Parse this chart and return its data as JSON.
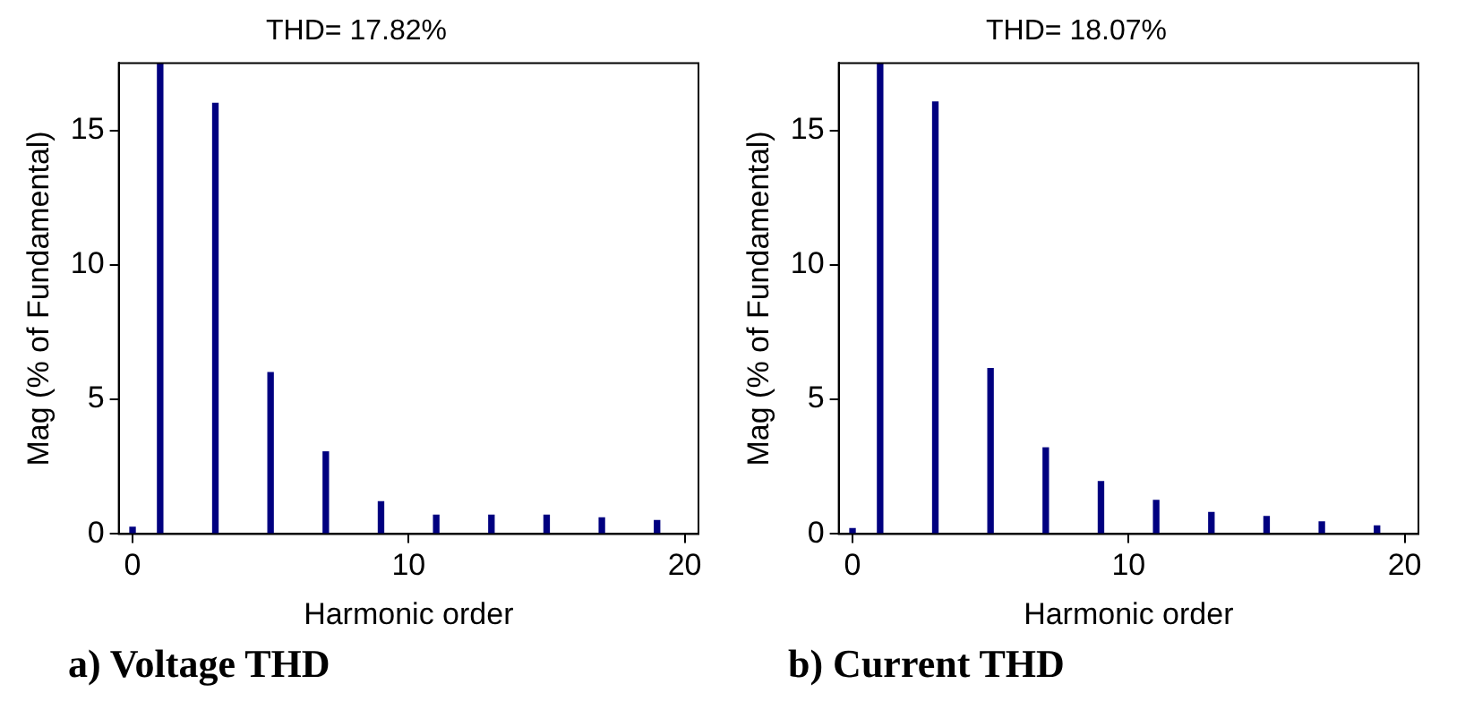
{
  "chart_data": [
    {
      "type": "bar",
      "title": "THD= 17.82%",
      "xlabel": "Harmonic order",
      "ylabel": "Mag (% of Fundamental)",
      "annotations": [
        "a) Voltage THD"
      ],
      "categories": [
        "0",
        null,
        null,
        null,
        null,
        null,
        null,
        null,
        null,
        null,
        "10",
        null,
        null,
        null,
        null,
        null,
        null,
        null,
        null,
        null,
        "20"
      ],
      "series": [
        {
          "color": "#000080",
          "values": [
            0.25,
            17.5,
            null,
            16.0,
            null,
            6.0,
            null,
            3.05,
            null,
            1.2,
            null,
            0.7,
            null,
            0.7,
            null,
            0.7,
            null,
            0.6,
            null,
            0.5,
            null
          ]
        }
      ],
      "ylim": [
        0,
        17.5
      ],
      "yticks": [
        0,
        5,
        10,
        15
      ],
      "grid": false,
      "legend": false
    },
    {
      "type": "bar",
      "title": "THD= 18.07%",
      "xlabel": "Harmonic order",
      "ylabel": "Mag (% of Fundamental)",
      "annotations": [
        "b) Current THD"
      ],
      "categories": [
        "0",
        null,
        null,
        null,
        null,
        null,
        null,
        null,
        null,
        null,
        "10",
        null,
        null,
        null,
        null,
        null,
        null,
        null,
        null,
        null,
        "20"
      ],
      "series": [
        {
          "color": "#000080",
          "values": [
            0.2,
            17.5,
            null,
            16.05,
            null,
            6.15,
            null,
            3.2,
            null,
            1.95,
            null,
            1.25,
            null,
            0.8,
            null,
            0.65,
            null,
            0.45,
            null,
            0.3,
            null
          ]
        }
      ],
      "ylim": [
        0,
        17.5
      ],
      "yticks": [
        0,
        5,
        10,
        15
      ],
      "grid": false,
      "legend": false
    }
  ]
}
